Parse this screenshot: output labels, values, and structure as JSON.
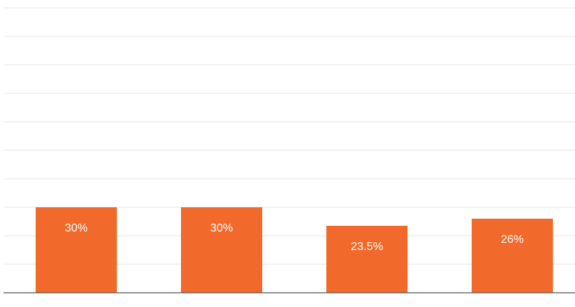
{
  "chart_data": {
    "type": "bar",
    "categories": [
      null,
      null,
      null,
      null
    ],
    "values": [
      30,
      30,
      23.5,
      26
    ],
    "value_labels": [
      "30%",
      "30%",
      "23.5%",
      "26%"
    ],
    "color": "#f26a2b",
    "ylim": [
      0,
      100
    ],
    "yticks": [
      0,
      10,
      20,
      30,
      40,
      50,
      60,
      70,
      80,
      90,
      100
    ],
    "grid": true
  }
}
